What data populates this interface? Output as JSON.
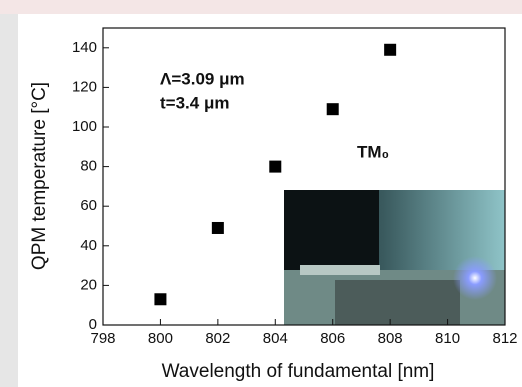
{
  "chart_data": {
    "type": "scatter",
    "x_label": "Wavelength of fundamental [nm]",
    "y_label": "QPM temperature [°C]",
    "annotations": [
      "Λ=3.09 μm",
      "t=3.4 μm",
      "TM₀"
    ],
    "series": [
      {
        "color": "#000000",
        "x": [
          800,
          802,
          804,
          806,
          808
        ],
        "values": [
          13,
          49,
          80,
          109,
          139
        ]
      }
    ],
    "xlim": [
      798,
      812
    ],
    "xticks": [
      798,
      800,
      802,
      804,
      806,
      808,
      810,
      812
    ],
    "ylim": [
      0,
      150
    ],
    "yticks": [
      0,
      20,
      40,
      60,
      80,
      100,
      120,
      140
    ]
  }
}
